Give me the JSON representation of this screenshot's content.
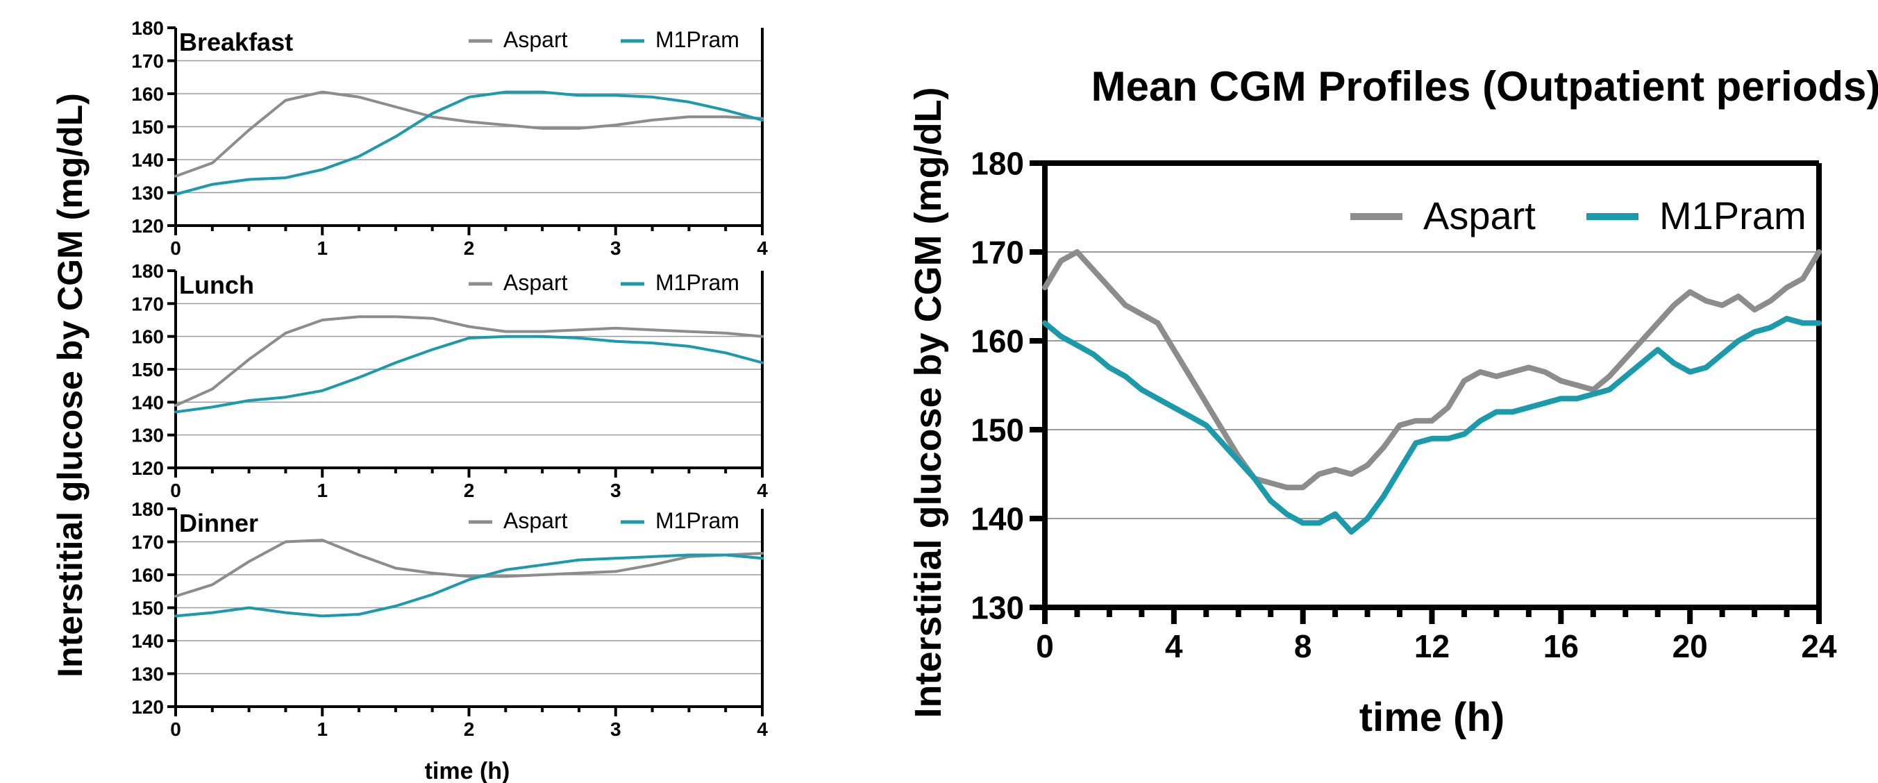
{
  "figure": {
    "left_ylabel": "Interstitial glucose by CGM (mg/dL)",
    "left_xlabel": "time (h)"
  },
  "colors": {
    "aspart": "#8c8c8c",
    "m1pram": "#1a9aaa",
    "axis": "#000000",
    "grid": "#9a9a9a"
  },
  "chart_data": [
    {
      "type": "line",
      "panel_label": "Breakfast",
      "xlim": [
        0,
        4
      ],
      "ylim": [
        120,
        180
      ],
      "xticks": [
        0,
        1,
        2,
        3,
        4
      ],
      "yticks": [
        120,
        130,
        140,
        150,
        160,
        170,
        180
      ],
      "grid": true,
      "legend_position": "top-right",
      "x": [
        0,
        0.25,
        0.5,
        0.75,
        1,
        1.25,
        1.5,
        1.75,
        2,
        2.25,
        2.5,
        2.75,
        3,
        3.25,
        3.5,
        3.75,
        4
      ],
      "series": [
        {
          "name": "Aspart",
          "values": [
            135,
            139,
            149,
            158,
            160.5,
            159,
            156,
            153,
            151.5,
            150.5,
            149.5,
            149.5,
            150.5,
            152,
            153,
            153,
            152.5
          ]
        },
        {
          "name": "M1Pram",
          "values": [
            129.5,
            132.5,
            134,
            134.5,
            137,
            141,
            147,
            154,
            159,
            160.5,
            160.5,
            159.5,
            159.5,
            159,
            157.5,
            155,
            152
          ]
        }
      ]
    },
    {
      "type": "line",
      "panel_label": "Lunch",
      "xlim": [
        0,
        4
      ],
      "ylim": [
        120,
        180
      ],
      "xticks": [
        0,
        1,
        2,
        3,
        4
      ],
      "yticks": [
        120,
        130,
        140,
        150,
        160,
        170,
        180
      ],
      "grid": true,
      "legend_position": "top-right",
      "x": [
        0,
        0.25,
        0.5,
        0.75,
        1,
        1.25,
        1.5,
        1.75,
        2,
        2.25,
        2.5,
        2.75,
        3,
        3.25,
        3.5,
        3.75,
        4
      ],
      "series": [
        {
          "name": "Aspart",
          "values": [
            139,
            144,
            153,
            161,
            165,
            166,
            166,
            165.5,
            163,
            161.5,
            161.5,
            162,
            162.5,
            162,
            161.5,
            161,
            160
          ]
        },
        {
          "name": "M1Pram",
          "values": [
            137,
            138.5,
            140.5,
            141.5,
            143.5,
            147.5,
            152,
            156,
            159.5,
            160,
            160,
            159.5,
            158.5,
            158,
            157,
            155,
            152
          ]
        }
      ]
    },
    {
      "type": "line",
      "panel_label": "Dinner",
      "xlim": [
        0,
        4
      ],
      "ylim": [
        120,
        180
      ],
      "xticks": [
        0,
        1,
        2,
        3,
        4
      ],
      "yticks": [
        120,
        130,
        140,
        150,
        160,
        170,
        180
      ],
      "grid": true,
      "legend_position": "top-right",
      "x": [
        0,
        0.25,
        0.5,
        0.75,
        1,
        1.25,
        1.5,
        1.75,
        2,
        2.25,
        2.5,
        2.75,
        3,
        3.25,
        3.5,
        3.75,
        4
      ],
      "series": [
        {
          "name": "Aspart",
          "values": [
            153.5,
            157,
            164,
            170,
            170.5,
            166,
            162,
            160.5,
            159.5,
            159.5,
            160,
            160.5,
            161,
            163,
            165.5,
            166,
            166.5
          ]
        },
        {
          "name": "M1Pram",
          "values": [
            147.5,
            148.5,
            150,
            148.5,
            147.5,
            148,
            150.5,
            154,
            158.5,
            161.5,
            163,
            164.5,
            165,
            165.5,
            166,
            166,
            165
          ]
        }
      ]
    },
    {
      "type": "line",
      "title": "Mean CGM Profiles (Outpatient periods)",
      "xlabel": "time (h)",
      "ylabel": "Interstitial glucose by CGM (mg/dL)",
      "xlim": [
        0,
        24
      ],
      "ylim": [
        130,
        180
      ],
      "xticks": [
        0,
        4,
        8,
        12,
        16,
        20,
        24
      ],
      "yticks": [
        130,
        140,
        150,
        160,
        170,
        180
      ],
      "grid": true,
      "legend_position": "top-right",
      "x": [
        0,
        0.5,
        1,
        1.5,
        2,
        2.5,
        3,
        3.5,
        4,
        4.5,
        5,
        5.5,
        6,
        6.5,
        7,
        7.5,
        8,
        8.5,
        9,
        9.5,
        10,
        10.5,
        11,
        11.5,
        12,
        12.5,
        13,
        13.5,
        14,
        14.5,
        15,
        15.5,
        16,
        16.5,
        17,
        17.5,
        18,
        18.5,
        19,
        19.5,
        20,
        20.5,
        21,
        21.5,
        22,
        22.5,
        23,
        23.5,
        24
      ],
      "series": [
        {
          "name": "Aspart",
          "values": [
            166,
            169,
            170,
            168,
            166,
            164,
            163,
            162,
            159,
            156,
            153,
            150,
            147,
            144.5,
            144,
            143.5,
            143.5,
            145,
            145.5,
            145,
            146,
            148,
            150.5,
            151,
            151,
            152.5,
            155.5,
            156.5,
            156,
            156.5,
            157,
            156.5,
            155.5,
            155,
            154.5,
            156,
            158,
            160,
            162,
            164,
            165.5,
            164.5,
            164,
            165,
            163.5,
            164.5,
            166,
            167,
            170
          ]
        },
        {
          "name": "M1Pram",
          "values": [
            162,
            160.5,
            159.5,
            158.5,
            157,
            156,
            154.5,
            153.5,
            152.5,
            151.5,
            150.5,
            148.5,
            146.5,
            144.5,
            142,
            140.5,
            139.5,
            139.5,
            140.5,
            138.5,
            140,
            142.5,
            145.5,
            148.5,
            149,
            149,
            149.5,
            151,
            152,
            152,
            152.5,
            153,
            153.5,
            153.5,
            154,
            154.5,
            156,
            157.5,
            159,
            157.5,
            156.5,
            157,
            158.5,
            160,
            161,
            161.5,
            162.5,
            162,
            162
          ]
        }
      ]
    }
  ]
}
